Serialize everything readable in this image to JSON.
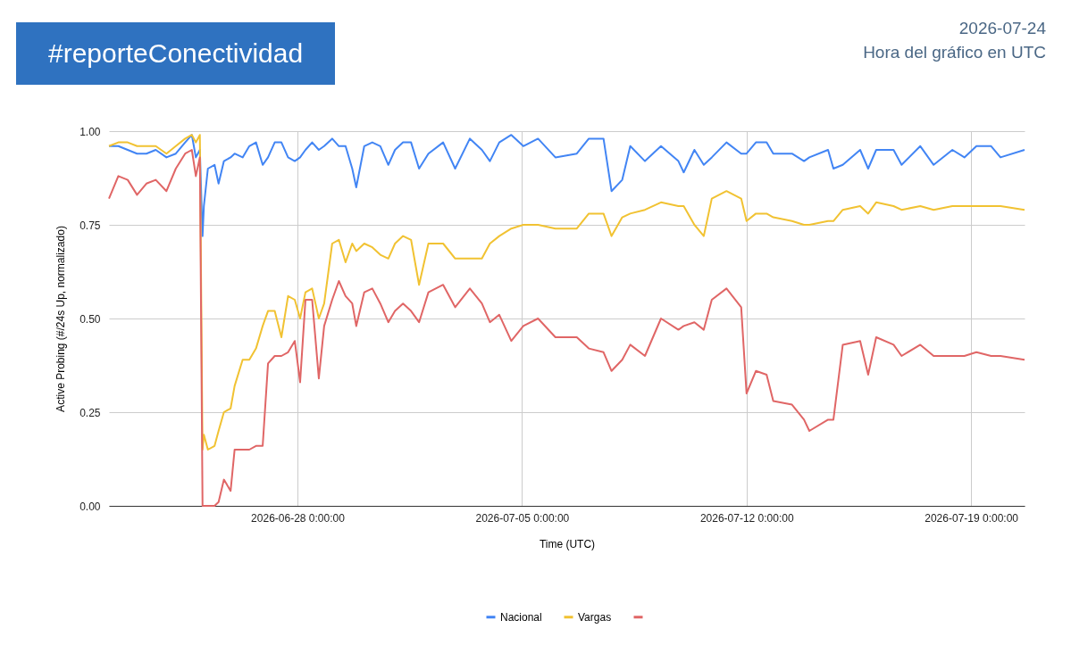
{
  "chart_data": {
    "type": "line",
    "title": "#reporteConectividad",
    "annotations": [
      "2026-07-24",
      "Hora del gráfico en UTC"
    ],
    "xlabel": "Time (UTC)",
    "ylabel": "Active Probing (#/24s Up, normalizado)",
    "x": [
      "2026-06-22T03:00",
      "2026-06-22T10:00",
      "2026-06-22T17:00",
      "2026-06-23T00:00",
      "2026-06-23T07:00",
      "2026-06-23T14:00",
      "2026-06-23T22:00",
      "2026-06-24T05:00",
      "2026-06-24T12:00",
      "2026-06-24T17:00",
      "2026-06-24T20:00",
      "2026-06-24T23:00",
      "2026-06-25T01:00",
      "2026-06-25T02:00",
      "2026-06-25T05:00",
      "2026-06-25T10:00",
      "2026-06-25T13:00",
      "2026-06-25T17:00",
      "2026-06-25T22:00",
      "2026-06-26T01:00",
      "2026-06-26T07:00",
      "2026-06-26T12:00",
      "2026-06-26T17:00",
      "2026-06-26T22:00",
      "2026-06-27T02:00",
      "2026-06-27T07:00",
      "2026-06-27T12:00",
      "2026-06-27T17:00",
      "2026-06-27T22:00",
      "2026-06-28T02:00",
      "2026-06-28T06:00",
      "2026-06-28T11:00",
      "2026-06-28T16:00",
      "2026-06-28T20:00",
      "2026-06-29T02:00",
      "2026-06-29T07:00",
      "2026-06-29T12:00",
      "2026-06-29T17:00",
      "2026-06-29T20:00",
      "2026-06-30T02:00",
      "2026-06-30T08:00",
      "2026-06-30T14:00",
      "2026-06-30T20:00",
      "2026-07-01T01:00",
      "2026-07-01T07:00",
      "2026-07-01T13:00",
      "2026-07-01T19:00",
      "2026-07-02T02:00",
      "2026-07-02T13:00",
      "2026-07-02T22:00",
      "2026-07-03T09:00",
      "2026-07-03T18:00",
      "2026-07-04T00:00",
      "2026-07-04T07:00",
      "2026-07-04T16:00",
      "2026-07-05T01:00",
      "2026-07-05T12:00",
      "2026-07-06T01:00",
      "2026-07-06T17:00",
      "2026-07-07T02:00",
      "2026-07-07T13:00",
      "2026-07-07T19:00",
      "2026-07-08T03:00",
      "2026-07-08T09:00",
      "2026-07-08T20:00",
      "2026-07-09T08:00",
      "2026-07-09T21:00",
      "2026-07-10T01:00",
      "2026-07-10T09:00",
      "2026-07-10T16:00",
      "2026-07-10T22:00",
      "2026-07-11T09:00",
      "2026-07-11T20:00",
      "2026-07-12T00:00",
      "2026-07-12T07:00",
      "2026-07-12T15:00",
      "2026-07-12T20:00",
      "2026-07-13T10:00",
      "2026-07-13T19:00",
      "2026-07-13T23:00",
      "2026-07-14T13:00",
      "2026-07-14T17:00",
      "2026-07-15T00:00",
      "2026-07-15T13:00",
      "2026-07-15T19:00",
      "2026-07-16T01:00",
      "2026-07-16T14:00",
      "2026-07-16T20:00",
      "2026-07-17T10:00",
      "2026-07-17T20:00",
      "2026-07-18T10:00",
      "2026-07-18T19:00",
      "2026-07-19T04:00",
      "2026-07-19T15:00",
      "2026-07-19T22:00",
      "2026-07-20T16:00"
    ],
    "series": [
      {
        "name": "Nacional",
        "color": "#4285f4",
        "values": [
          0.96,
          0.96,
          0.95,
          0.94,
          0.94,
          0.95,
          0.93,
          0.94,
          0.97,
          0.99,
          0.93,
          0.95,
          0.72,
          0.8,
          0.9,
          0.91,
          0.86,
          0.92,
          0.93,
          0.94,
          0.93,
          0.96,
          0.97,
          0.91,
          0.93,
          0.97,
          0.97,
          0.93,
          0.92,
          0.93,
          0.95,
          0.97,
          0.95,
          0.96,
          0.98,
          0.96,
          0.96,
          0.9,
          0.85,
          0.96,
          0.97,
          0.96,
          0.91,
          0.95,
          0.97,
          0.97,
          0.9,
          0.94,
          0.97,
          0.9,
          0.98,
          0.95,
          0.92,
          0.97,
          0.99,
          0.96,
          0.98,
          0.93,
          0.94,
          0.98,
          0.98,
          0.84,
          0.87,
          0.96,
          0.92,
          0.96,
          0.92,
          0.89,
          0.95,
          0.91,
          0.93,
          0.97,
          0.94,
          0.94,
          0.97,
          0.97,
          0.94,
          0.94,
          0.92,
          0.93,
          0.95,
          0.9,
          0.91,
          0.95,
          0.9,
          0.95,
          0.95,
          0.91,
          0.96,
          0.91,
          0.95,
          0.93,
          0.96,
          0.96,
          0.93,
          0.95
        ]
      },
      {
        "name": "Vargas",
        "color": "#f1c232",
        "values": [
          0.96,
          0.97,
          0.97,
          0.96,
          0.96,
          0.96,
          0.94,
          0.96,
          0.98,
          0.99,
          0.97,
          0.99,
          0.15,
          0.19,
          0.15,
          0.16,
          0.2,
          0.25,
          0.26,
          0.32,
          0.39,
          0.39,
          0.42,
          0.48,
          0.52,
          0.52,
          0.45,
          0.56,
          0.55,
          0.5,
          0.57,
          0.58,
          0.5,
          0.54,
          0.7,
          0.71,
          0.65,
          0.7,
          0.68,
          0.7,
          0.69,
          0.67,
          0.66,
          0.7,
          0.72,
          0.71,
          0.59,
          0.7,
          0.7,
          0.66,
          0.66,
          0.66,
          0.7,
          0.72,
          0.74,
          0.75,
          0.75,
          0.74,
          0.74,
          0.78,
          0.78,
          0.72,
          0.77,
          0.78,
          0.79,
          0.81,
          0.8,
          0.8,
          0.75,
          0.72,
          0.82,
          0.84,
          0.82,
          0.76,
          0.78,
          0.78,
          0.77,
          0.76,
          0.75,
          0.75,
          0.76,
          0.76,
          0.79,
          0.8,
          0.78,
          0.81,
          0.8,
          0.79,
          0.8,
          0.79,
          0.8,
          0.8,
          0.8,
          0.8,
          0.8,
          0.79
        ]
      },
      {
        "color": "#e06666",
        "values": [
          0.82,
          0.88,
          0.87,
          0.83,
          0.86,
          0.87,
          0.84,
          0.9,
          0.94,
          0.95,
          0.88,
          0.93,
          0.0,
          0.0,
          0.0,
          0.0,
          0.01,
          0.07,
          0.04,
          0.15,
          0.15,
          0.15,
          0.16,
          0.16,
          0.38,
          0.4,
          0.4,
          0.41,
          0.44,
          0.33,
          0.55,
          0.55,
          0.34,
          0.48,
          0.55,
          0.6,
          0.56,
          0.54,
          0.48,
          0.57,
          0.58,
          0.54,
          0.49,
          0.52,
          0.54,
          0.52,
          0.49,
          0.57,
          0.59,
          0.53,
          0.58,
          0.54,
          0.49,
          0.51,
          0.44,
          0.48,
          0.5,
          0.45,
          0.45,
          0.42,
          0.41,
          0.36,
          0.39,
          0.43,
          0.4,
          0.5,
          0.47,
          0.48,
          0.49,
          0.47,
          0.55,
          0.58,
          0.53,
          0.3,
          0.36,
          0.35,
          0.28,
          0.27,
          0.23,
          0.2,
          0.23,
          0.23,
          0.43,
          0.44,
          0.35,
          0.45,
          0.43,
          0.4,
          0.43,
          0.4,
          0.4,
          0.4,
          0.41,
          0.4,
          0.4,
          0.39
        ]
      }
    ],
    "xlim": [
      "2026-06-22T03:00",
      "2026-07-20T16:00"
    ],
    "xticks": [
      {
        "value": "2026-06-28T00:00",
        "label": "2026-06-28 0:00:00"
      },
      {
        "value": "2026-07-05T00:00",
        "label": "2026-07-05 0:00:00"
      },
      {
        "value": "2026-07-12T00:00",
        "label": "2026-07-12 0:00:00"
      },
      {
        "value": "2026-07-19T00:00",
        "label": "2026-07-19 0:00:00"
      }
    ],
    "ylim": [
      0,
      1
    ],
    "yticks": [
      {
        "value": 0,
        "label": "0.00"
      },
      {
        "value": 0.25,
        "label": "0.25"
      },
      {
        "value": 0.5,
        "label": "0.50"
      },
      {
        "value": 0.75,
        "label": "0.75"
      },
      {
        "value": 1,
        "label": "1.00"
      }
    ],
    "grid": true,
    "legend": "bottom"
  }
}
